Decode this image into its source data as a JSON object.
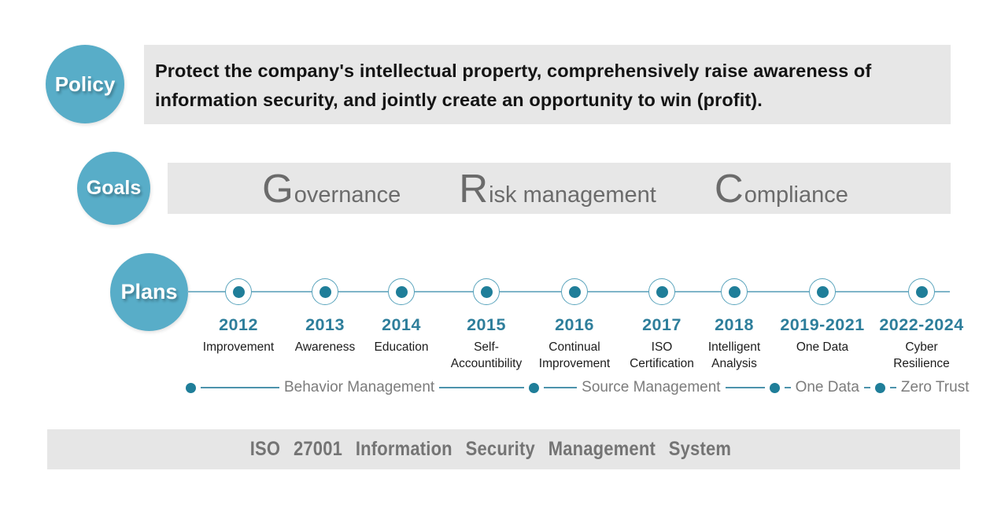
{
  "policy": {
    "label": "Policy",
    "text_line1": "Protect the company's intellectual property, comprehensively raise awareness of",
    "text_line2": "information security, and jointly create an opportunity to win (profit)."
  },
  "goals": {
    "label": "Goals",
    "items": [
      {
        "initial": "G",
        "rest": "overnance"
      },
      {
        "initial": "R",
        "rest": "isk management"
      },
      {
        "initial": "C",
        "rest": "ompliance"
      }
    ]
  },
  "plans": {
    "label": "Plans",
    "milestones": [
      {
        "year": "2012",
        "label": "Improvement"
      },
      {
        "year": "2013",
        "label": "Awareness"
      },
      {
        "year": "2014",
        "label": "Education"
      },
      {
        "year": "2015",
        "label": "Self-\nAccountibility"
      },
      {
        "year": "2016",
        "label": "Continual\nImprovement"
      },
      {
        "year": "2017",
        "label": "ISO\nCertification"
      },
      {
        "year": "2018",
        "label": "Intelligent\nAnalysis"
      },
      {
        "year": "2019-2021",
        "label": "One Data"
      },
      {
        "year": "2022-2024",
        "label": "Cyber\nResilience"
      }
    ],
    "phases": [
      "Behavior Management",
      "Source Management",
      "One Data",
      "Zero Trust"
    ]
  },
  "footer": {
    "text": "ISO 27001 Information Security Management System"
  },
  "colors": {
    "circle_teal": "#58ADC8",
    "dot_teal": "#1F7E99",
    "year_teal": "#2E7E9B",
    "timeline_line": "#7FB5C8",
    "panel_gray": "#E7E7E7",
    "goal_text_gray": "#6B6B6B",
    "phase_text_gray": "#7C7C7C",
    "footer_text_gray": "#747474"
  }
}
